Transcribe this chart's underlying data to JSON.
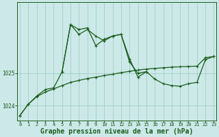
{
  "background_color": "#cce8e8",
  "grid_color": "#99ccbb",
  "line_color": "#1a5c1a",
  "xlabel": "Graphe pression niveau de la mer (hPa)",
  "xlabel_fontsize": 7.0,
  "ylabel_ticks": [
    1024,
    1025
  ],
  "x_ticks": [
    0,
    1,
    2,
    3,
    4,
    5,
    6,
    7,
    8,
    9,
    10,
    11,
    12,
    13,
    14,
    15,
    16,
    17,
    18,
    19,
    20,
    21,
    22,
    23
  ],
  "xlim": [
    -0.3,
    23.3
  ],
  "ylim": [
    1023.55,
    1027.2
  ],
  "series1": [
    1023.7,
    1024.05,
    1024.28,
    1024.42,
    1024.52,
    1024.62,
    1024.72,
    1024.78,
    1024.84,
    1024.88,
    1024.93,
    1024.97,
    1025.02,
    1025.06,
    1025.1,
    1025.13,
    1025.15,
    1025.17,
    1025.19,
    1025.2,
    1025.21,
    1025.22,
    1025.48,
    1025.52
  ],
  "series2": [
    1023.7,
    1024.05,
    1024.3,
    1024.5,
    1024.55,
    1025.05,
    1026.5,
    1026.35,
    1026.4,
    1025.85,
    1026.05,
    1026.15,
    1026.2,
    1025.45,
    1024.88,
    1025.05,
    1024.82,
    1024.68,
    1024.62,
    1024.6,
    1024.68,
    1024.72,
    1025.42,
    1025.52
  ],
  "series3_x": [
    5,
    6,
    7,
    8,
    9,
    10,
    11,
    12,
    13,
    14,
    15
  ],
  "series3_y": [
    1025.05,
    1026.5,
    1026.2,
    1026.35,
    1026.15,
    1026.0,
    1026.15,
    1026.2,
    1025.35,
    1025.0,
    1025.05
  ]
}
